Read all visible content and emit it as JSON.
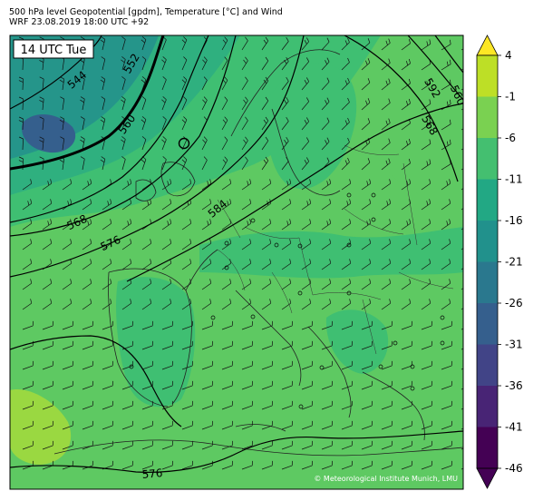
{
  "title": {
    "line1": "500 hPa level Geopotential [gpdm], Temperature [°C] and Wind",
    "line2": "WRF 23.08.2019 18:00 UTC +92"
  },
  "time_label": "14 UTC Tue",
  "copyright": "© Meteorological Institute Munich, LMU",
  "contour_labels": [
    "544",
    "552",
    "560",
    "568",
    "576",
    "584",
    "592",
    "568",
    "576",
    "560"
  ],
  "colorbar": {
    "ticks": [
      "4",
      "-1",
      "-6",
      "-11",
      "-16",
      "-21",
      "-26",
      "-31",
      "-36",
      "-41",
      "-46"
    ],
    "colors": [
      "#440154",
      "#482475",
      "#414487",
      "#355f8d",
      "#2a788e",
      "#21918c",
      "#22a884",
      "#44bf70",
      "#7ad151",
      "#bddf26",
      "#fde725"
    ]
  },
  "colors": {
    "land_warm": "#5ec962",
    "mid": "#3fbf72",
    "cool": "#2fb07f",
    "teal": "#23908c",
    "deep": "#2a788e",
    "cold": "#355f8d",
    "warm_spot": "#9ad841"
  }
}
